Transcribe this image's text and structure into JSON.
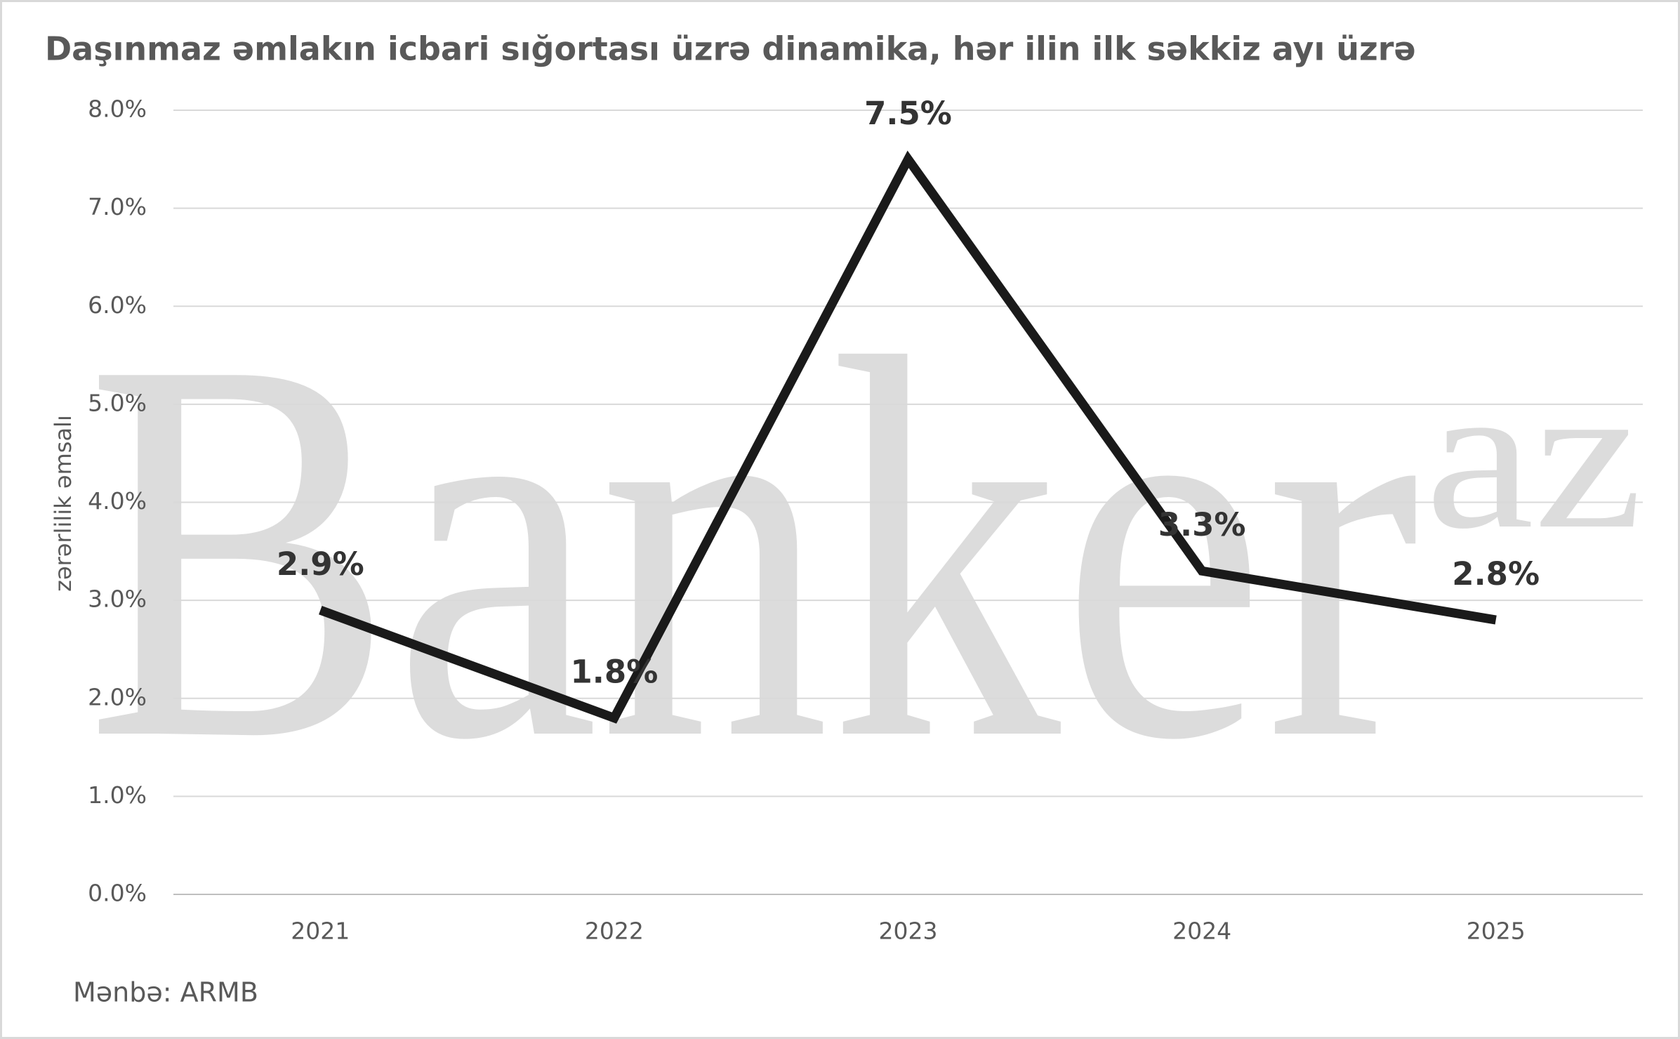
{
  "chart_data": {
    "type": "line",
    "title": "Daşınmaz əmlakın icbari sığortası üzrə dinamika, hər ilin ilk səkkiz ayı üzrə",
    "y_label": "zərərlilik əmsalı",
    "source": "Mənbə: ARMB",
    "watermark": {
      "text": "Banker",
      "superscript": "az"
    },
    "categories": [
      "2021",
      "2022",
      "2023",
      "2024",
      "2025"
    ],
    "series": [
      {
        "name": "zərərlilik əmsalı",
        "color": "#1a1a1a",
        "values": [
          2.9,
          1.8,
          7.5,
          3.3,
          2.8
        ],
        "value_labels": [
          "2.9%",
          "1.8%",
          "7.5%",
          "3.3%",
          "2.8%"
        ]
      }
    ],
    "ylim": [
      0,
      8
    ],
    "yticks": [
      {
        "value": 0,
        "label": "0.0%"
      },
      {
        "value": 1,
        "label": "1.0%"
      },
      {
        "value": 2,
        "label": "2.0%"
      },
      {
        "value": 3,
        "label": "3.0%"
      },
      {
        "value": 4,
        "label": "4.0%"
      },
      {
        "value": 5,
        "label": "5.0%"
      },
      {
        "value": 6,
        "label": "6.0%"
      },
      {
        "value": 7,
        "label": "7.0%"
      },
      {
        "value": 8,
        "label": "8.0%"
      }
    ],
    "grid": true
  }
}
